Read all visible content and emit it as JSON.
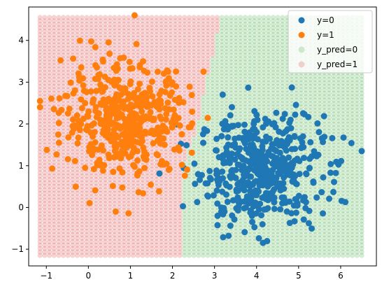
{
  "chart_data": {
    "type": "scatter",
    "title": "",
    "xlabel": "",
    "ylabel": "",
    "xlim": [
      -1.42,
      6.85
    ],
    "ylim": [
      -1.4,
      4.8
    ],
    "xticks": [
      -1,
      0,
      1,
      2,
      3,
      4,
      5,
      6
    ],
    "yticks": [
      -1,
      0,
      1,
      2,
      3,
      4
    ],
    "xtick_labels": [
      "−1",
      "0",
      "1",
      "2",
      "3",
      "4",
      "5",
      "6"
    ],
    "ytick_labels": [
      "−1",
      "0",
      "1",
      "2",
      "3",
      "4"
    ],
    "grid": false,
    "legend_position": "top-right",
    "series": [
      {
        "name": "y=0",
        "color": "#1f77b4",
        "alpha": 1.0,
        "kind": "data",
        "center": [
          4.1,
          0.9
        ],
        "spread": [
          0.95,
          0.85
        ],
        "count": 500
      },
      {
        "name": "y=1",
        "color": "#ff7f0e",
        "alpha": 1.0,
        "kind": "data",
        "center": [
          0.9,
          2.1
        ],
        "spread": [
          0.95,
          0.85
        ],
        "count": 500
      },
      {
        "name": "y_pred=0",
        "color": "#2ca02c",
        "alpha": 0.2,
        "kind": "decision-grid"
      },
      {
        "name": "y_pred=1",
        "color": "#d62728",
        "alpha": 0.2,
        "kind": "decision-grid"
      }
    ],
    "decision_grid": {
      "x_range": [
        -1.15,
        6.5
      ],
      "y_range": [
        -1.15,
        4.55
      ],
      "steps": 70,
      "boundary_x_at_y": [
        [
          -1.15,
          2.25
        ],
        [
          0.0,
          2.2
        ],
        [
          1.0,
          2.25
        ],
        [
          2.0,
          2.6
        ],
        [
          3.0,
          2.8
        ],
        [
          4.0,
          3.05
        ],
        [
          4.55,
          3.1
        ]
      ]
    },
    "outliers": [
      {
        "series": "y=1",
        "x": 1.1,
        "y": 4.6
      },
      {
        "series": "y=0",
        "x": 6.5,
        "y": 1.35
      },
      {
        "series": "y=1",
        "x": -1.15,
        "y": 2.55
      },
      {
        "series": "y=1",
        "x": -1.15,
        "y": 2.4
      }
    ]
  }
}
